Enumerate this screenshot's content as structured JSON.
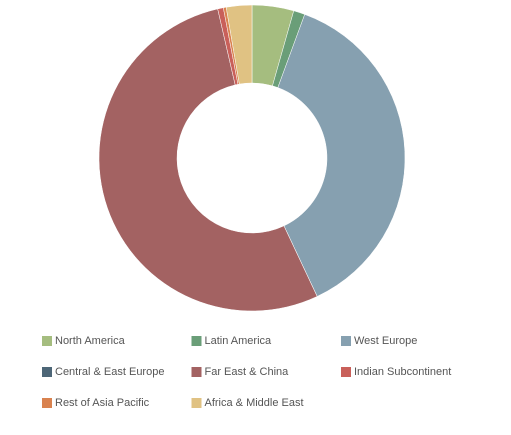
{
  "chart_data": {
    "type": "donut",
    "categories": [
      "North America",
      "Latin America",
      "West Europe",
      "Central & East Europe",
      "Far East & China",
      "Indian Subcontinent",
      "Rest of Asia Pacific",
      "Africa & Middle East"
    ],
    "values": [
      4.4,
      1.2,
      37.4,
      0,
      53.4,
      0.6,
      0.3,
      2.7
    ],
    "colors": [
      "#a5bd7f",
      "#6a9e78",
      "#86a0b0",
      "#4d6677",
      "#a36262",
      "#c9605a",
      "#d9824f",
      "#e0c283"
    ],
    "legend": "bottom"
  }
}
